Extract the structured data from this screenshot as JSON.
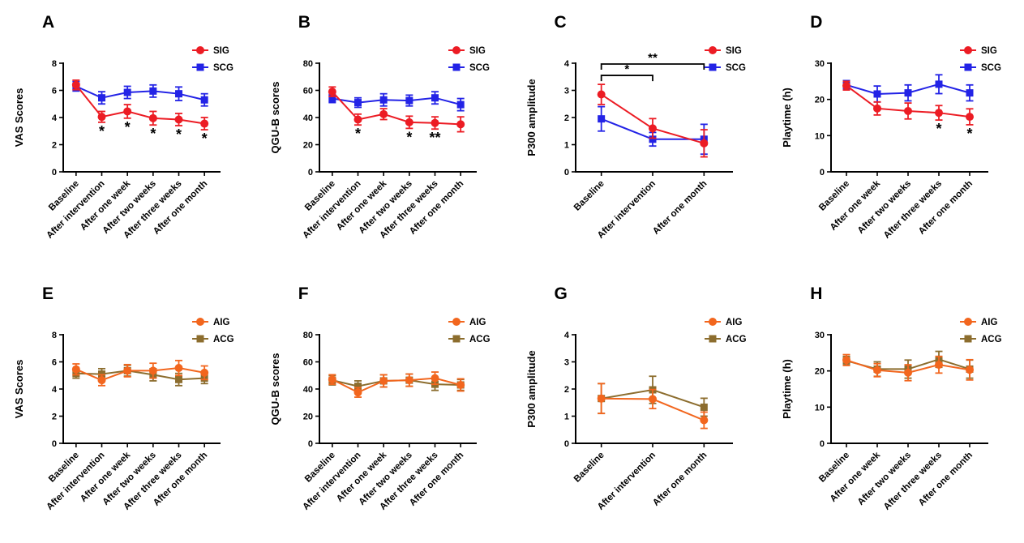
{
  "figure_background": "#ffffff",
  "chart_data": [
    {
      "type": "line",
      "panel": "A",
      "ylabel": "VAS Scores",
      "ylim": [
        0,
        8
      ],
      "yticks": [
        0,
        2,
        4,
        6,
        8
      ],
      "grid": false,
      "legend_position": "top-right",
      "categories": [
        "Baseline",
        "After intervention",
        "After one week",
        "After two weeks",
        "After three weeks",
        "After one month"
      ],
      "series": [
        {
          "name": "SIG",
          "color": "#EC1C24",
          "marker": "circle",
          "values": [
            6.4,
            4.05,
            4.45,
            3.95,
            3.85,
            3.55
          ],
          "errors": [
            0.35,
            0.4,
            0.5,
            0.5,
            0.45,
            0.45
          ]
        },
        {
          "name": "SCG",
          "color": "#2323E6",
          "marker": "square",
          "values": [
            6.3,
            5.45,
            5.85,
            5.95,
            5.75,
            5.3
          ],
          "errors": [
            0.35,
            0.45,
            0.45,
            0.45,
            0.5,
            0.45
          ]
        }
      ],
      "sig_below_points": [
        {
          "series": 0,
          "category": 1,
          "label": "*"
        },
        {
          "series": 0,
          "category": 2,
          "label": "*"
        },
        {
          "series": 0,
          "category": 3,
          "label": "*"
        },
        {
          "series": 0,
          "category": 4,
          "label": "*"
        },
        {
          "series": 0,
          "category": 5,
          "label": "*"
        }
      ],
      "sig_brackets": []
    },
    {
      "type": "line",
      "panel": "B",
      "ylabel": "QGU-B scores",
      "ylim": [
        0,
        80
      ],
      "yticks": [
        0,
        20,
        40,
        60,
        80
      ],
      "grid": false,
      "legend_position": "top-right",
      "categories": [
        "Baseline",
        "After intervention",
        "After one week",
        "After two weeks",
        "After three weeks",
        "After one month"
      ],
      "series": [
        {
          "name": "SIG",
          "color": "#EC1C24",
          "marker": "circle",
          "values": [
            59,
            38.5,
            42.5,
            36.5,
            36,
            35
          ],
          "errors": [
            3.5,
            4,
            4,
            4.5,
            4.5,
            5.5
          ]
        },
        {
          "name": "SCG",
          "color": "#2323E6",
          "marker": "square",
          "values": [
            54,
            51,
            53,
            52.5,
            54.5,
            49.5
          ],
          "errors": [
            3,
            3.5,
            4.5,
            4,
            4.5,
            4.5
          ]
        }
      ],
      "sig_below_points": [
        {
          "series": 0,
          "category": 1,
          "label": "*"
        },
        {
          "series": 0,
          "category": 3,
          "label": "*"
        },
        {
          "series": 0,
          "category": 4,
          "label": "**"
        }
      ],
      "sig_brackets": []
    },
    {
      "type": "line",
      "panel": "C",
      "ylabel": "P300 amplitude",
      "ylim": [
        0,
        4
      ],
      "yticks": [
        0,
        1,
        2,
        3,
        4
      ],
      "grid": false,
      "legend_position": "top-right",
      "categories": [
        "Baseline",
        "After intervention",
        "After one month"
      ],
      "series": [
        {
          "name": "SIG",
          "color": "#EC1C24",
          "marker": "circle",
          "values": [
            2.85,
            1.6,
            1.05
          ],
          "errors": [
            0.37,
            0.36,
            0.5
          ]
        },
        {
          "name": "SCG",
          "color": "#2323E6",
          "marker": "square",
          "values": [
            1.95,
            1.2,
            1.2
          ],
          "errors": [
            0.45,
            0.25,
            0.55
          ]
        }
      ],
      "sig_below_points": [],
      "sig_brackets": [
        {
          "from": 0,
          "to": 1,
          "y": 3.55,
          "label": "*"
        },
        {
          "from": 0,
          "to": 2,
          "y": 3.97,
          "label": "**"
        }
      ]
    },
    {
      "type": "line",
      "panel": "D",
      "ylabel": "Playtime (h)",
      "ylim": [
        0,
        30
      ],
      "yticks": [
        0,
        10,
        20,
        30
      ],
      "grid": false,
      "legend_position": "top-right",
      "categories": [
        "Baseline",
        "After one week",
        "After two weeks",
        "After three weeks",
        "After one month"
      ],
      "series": [
        {
          "name": "SIG",
          "color": "#EC1C24",
          "marker": "circle",
          "values": [
            23.8,
            17.5,
            16.8,
            16.3,
            15.2
          ],
          "errors": [
            1.2,
            1.8,
            2.2,
            2.0,
            2.2
          ]
        },
        {
          "name": "SCG",
          "color": "#2323E6",
          "marker": "square",
          "values": [
            24.0,
            21.5,
            21.8,
            24.2,
            21.8
          ],
          "errors": [
            1.2,
            2.2,
            2.2,
            2.6,
            2.2
          ]
        }
      ],
      "sig_below_points": [
        {
          "series": 0,
          "category": 3,
          "label": "*"
        },
        {
          "series": 0,
          "category": 4,
          "label": "*"
        }
      ],
      "sig_brackets": []
    },
    {
      "type": "line",
      "panel": "E",
      "ylabel": "VAS Scores",
      "ylim": [
        0,
        8
      ],
      "yticks": [
        0,
        2,
        4,
        6,
        8
      ],
      "grid": false,
      "legend_position": "top-right",
      "categories": [
        "Baseline",
        "After intervention",
        "After one week",
        "After two weeks",
        "After three weeks",
        "After one month"
      ],
      "series": [
        {
          "name": "AIG",
          "color": "#F2661E",
          "marker": "circle",
          "values": [
            5.45,
            4.65,
            5.35,
            5.35,
            5.55,
            5.2
          ],
          "errors": [
            0.4,
            0.4,
            0.45,
            0.55,
            0.55,
            0.5
          ]
        },
        {
          "name": "ACG",
          "color": "#8C6D2E",
          "marker": "square",
          "values": [
            5.15,
            5.1,
            5.35,
            5.05,
            4.7,
            4.8
          ],
          "errors": [
            0.35,
            0.4,
            0.4,
            0.45,
            0.45,
            0.4
          ]
        }
      ],
      "sig_below_points": [],
      "sig_brackets": []
    },
    {
      "type": "line",
      "panel": "F",
      "ylabel": "QGU-B scores",
      "ylim": [
        0,
        80
      ],
      "yticks": [
        0,
        20,
        40,
        60,
        80
      ],
      "grid": false,
      "legend_position": "top-right",
      "categories": [
        "Baseline",
        "After intervention",
        "After one week",
        "After two weeks",
        "After three weeks",
        "After one month"
      ],
      "series": [
        {
          "name": "AIG",
          "color": "#F2661E",
          "marker": "circle",
          "values": [
            47,
            37.5,
            46,
            46.5,
            48,
            43
          ],
          "errors": [
            3.5,
            3.5,
            4.5,
            4.5,
            4.5,
            4.5
          ]
        },
        {
          "name": "ACG",
          "color": "#8C6D2E",
          "marker": "square",
          "values": [
            46.5,
            42,
            46,
            46.5,
            43.5,
            43
          ],
          "errors": [
            3.5,
            4,
            4.5,
            4.5,
            4.5,
            4
          ]
        }
      ],
      "sig_below_points": [],
      "sig_brackets": []
    },
    {
      "type": "line",
      "panel": "G",
      "ylabel": "P300 amplitude",
      "ylim": [
        0,
        4
      ],
      "yticks": [
        0,
        1,
        2,
        3,
        4
      ],
      "grid": false,
      "legend_position": "top-right",
      "categories": [
        "Baseline",
        "After intervention",
        "After one month"
      ],
      "series": [
        {
          "name": "AIG",
          "color": "#F2661E",
          "marker": "circle",
          "values": [
            1.65,
            1.63,
            0.85
          ],
          "errors": [
            0.55,
            0.35,
            0.3
          ]
        },
        {
          "name": "ACG",
          "color": "#8C6D2E",
          "marker": "square",
          "values": [
            1.65,
            1.97,
            1.33
          ],
          "errors": [
            0.55,
            0.5,
            0.33
          ]
        }
      ],
      "sig_below_points": [],
      "sig_brackets": []
    },
    {
      "type": "line",
      "panel": "H",
      "ylabel": "Playtime (h)",
      "ylim": [
        0,
        30
      ],
      "yticks": [
        0,
        10,
        20,
        30
      ],
      "grid": false,
      "legend_position": "top-right",
      "categories": [
        "Baseline",
        "After one week",
        "After two weeks",
        "After three weeks",
        "After one month"
      ],
      "series": [
        {
          "name": "AIG",
          "color": "#F2661E",
          "marker": "circle",
          "values": [
            23.0,
            20.2,
            19.5,
            21.7,
            20.3
          ],
          "errors": [
            1.5,
            1.8,
            2.2,
            2.3,
            2.8
          ]
        },
        {
          "name": "ACG",
          "color": "#8C6D2E",
          "marker": "square",
          "values": [
            22.8,
            20.5,
            20.5,
            23.2,
            20.5
          ],
          "errors": [
            1.2,
            2.0,
            2.5,
            2.2,
            2.5
          ]
        }
      ],
      "sig_below_points": [],
      "sig_brackets": []
    }
  ]
}
